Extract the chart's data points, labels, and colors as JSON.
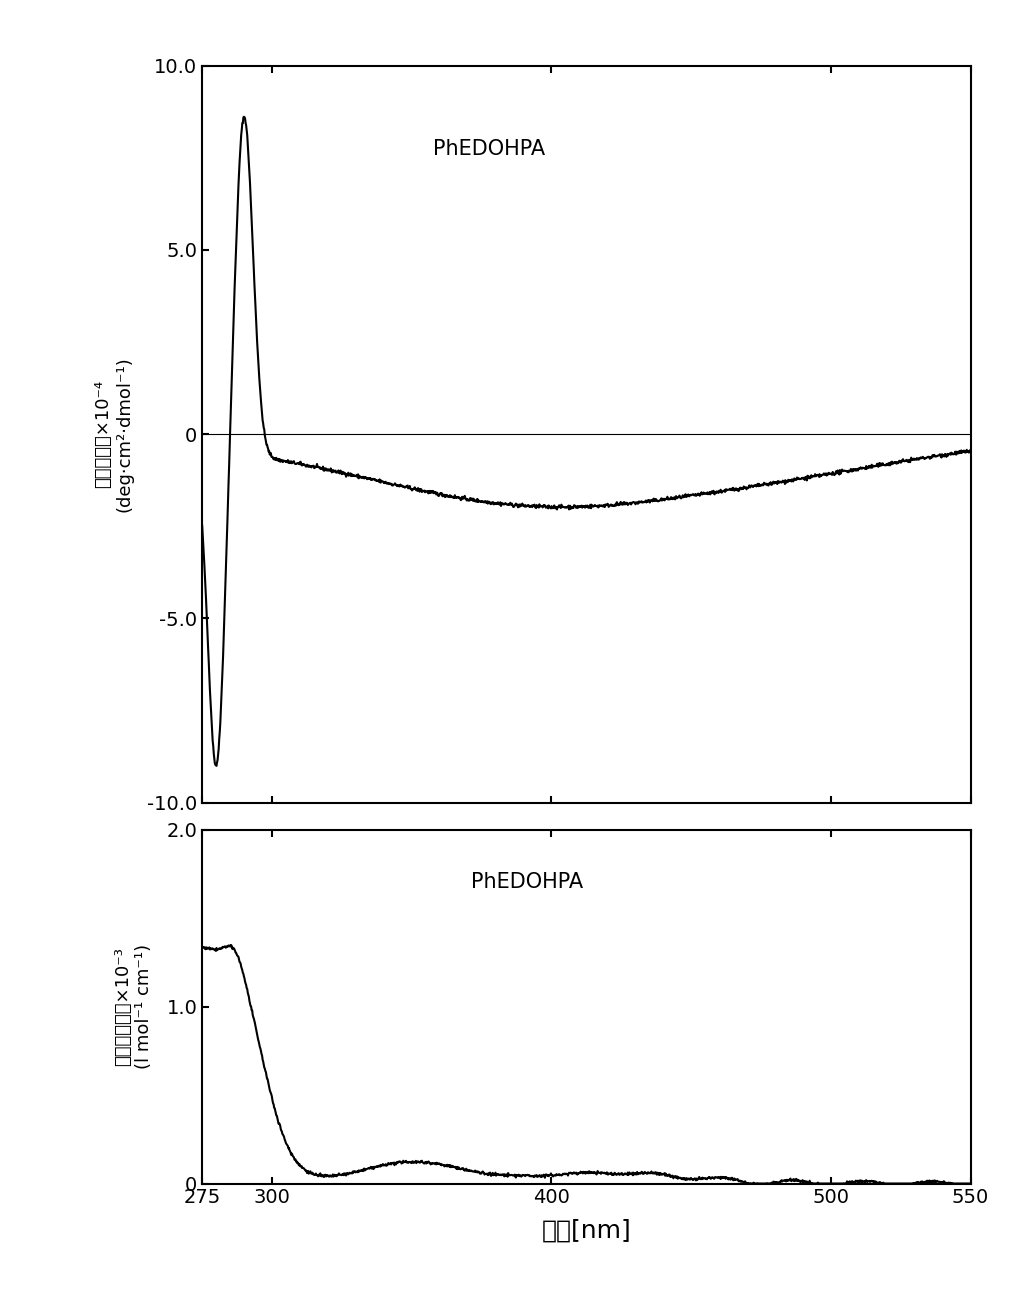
{
  "xlabel": "波长[nm]",
  "cd_ylabel_line1": "摩尔椒圆率×10⁻⁴",
  "cd_ylabel_line2": "(deg·cm²·dmol⁻¹)",
  "uv_ylabel_line1": "摩尔吸光系数×10⁻³",
  "uv_ylabel_line2": "(l mol⁻¹ cm⁻¹)",
  "cd_ylim": [
    -10.0,
    10.0
  ],
  "cd_yticks": [
    -10.0,
    -5.0,
    0,
    5.0,
    10.0
  ],
  "cd_yticklabels": [
    "-10.0",
    "-5.0",
    "0",
    "5.0",
    "10.0"
  ],
  "uv_ylim": [
    0,
    2.0
  ],
  "uv_yticks": [
    0,
    1.0,
    2.0
  ],
  "uv_yticklabels": [
    "0",
    "1.0",
    "2.0"
  ],
  "xlim": [
    275,
    550
  ],
  "xticks": [
    275,
    300,
    400,
    500,
    550
  ],
  "xticklabels": [
    "275",
    "300",
    "400",
    "500",
    "550"
  ],
  "label": "PhEDOHPA",
  "line_color": "#000000",
  "background_color": "#ffffff",
  "xlabel_fontsize": 18,
  "ylabel_fontsize": 13,
  "tick_fontsize": 14,
  "label_fontsize": 15
}
